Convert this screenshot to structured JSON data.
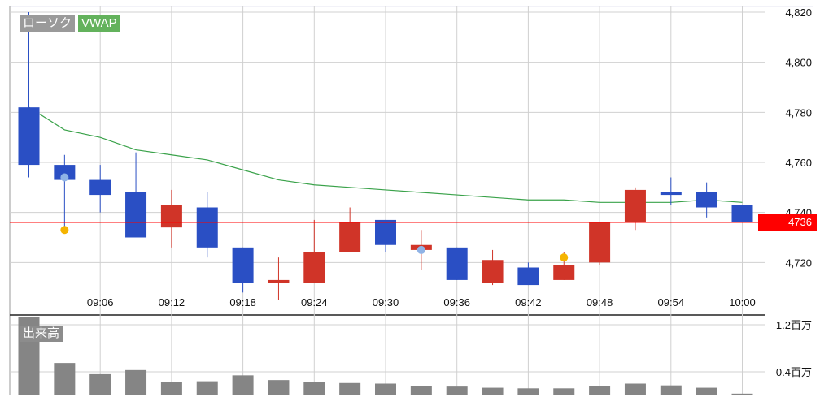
{
  "legend": {
    "candle": "ローソク",
    "vwap": "VWAP",
    "volume": "出来高"
  },
  "current_price_badge": "4736",
  "colors": {
    "up": "#d03428",
    "down": "#2a4fc4",
    "vwap": "#3aa24a",
    "price_line": "#ff0000",
    "volume": "#858585",
    "grid": "#d0d0d0",
    "marker_gold": "#f5b400",
    "marker_blue": "#8fb3e6"
  },
  "chart_data": {
    "type": "candlestick",
    "x_ticks": [
      "09:06",
      "09:12",
      "09:18",
      "09:24",
      "09:30",
      "09:36",
      "09:42",
      "09:48",
      "09:54",
      "10:00"
    ],
    "y_ticks": [
      "4,720",
      "4,740",
      "4,760",
      "4,780",
      "4,800",
      "4,820"
    ],
    "y_tick_values": [
      4720,
      4740,
      4760,
      4780,
      4800,
      4820
    ],
    "ylim": [
      4700,
      4820
    ],
    "current_price": 4736,
    "candles": [
      {
        "o": 4782,
        "h": 4820,
        "l": 4754,
        "c": 4759
      },
      {
        "o": 4759,
        "h": 4763,
        "l": 4733,
        "c": 4753
      },
      {
        "o": 4753,
        "h": 4759,
        "l": 4740,
        "c": 4747
      },
      {
        "o": 4748,
        "h": 4764,
        "l": 4730,
        "c": 4730
      },
      {
        "o": 4734,
        "h": 4749,
        "l": 4726,
        "c": 4743
      },
      {
        "o": 4742,
        "h": 4748,
        "l": 4722,
        "c": 4726
      },
      {
        "o": 4726,
        "h": 4726,
        "l": 4708,
        "c": 4712
      },
      {
        "o": 4712,
        "h": 4722,
        "l": 4705,
        "c": 4713
      },
      {
        "o": 4712,
        "h": 4737,
        "l": 4712,
        "c": 4724
      },
      {
        "o": 4724,
        "h": 4742,
        "l": 4724,
        "c": 4736
      },
      {
        "o": 4737,
        "h": 4737,
        "l": 4724,
        "c": 4727
      },
      {
        "o": 4725,
        "h": 4733,
        "l": 4717,
        "c": 4727
      },
      {
        "o": 4726,
        "h": 4726,
        "l": 4713,
        "c": 4713
      },
      {
        "o": 4712,
        "h": 4725,
        "l": 4711,
        "c": 4721
      },
      {
        "o": 4718,
        "h": 4720,
        "l": 4711,
        "c": 4711
      },
      {
        "o": 4713,
        "h": 4724,
        "l": 4713,
        "c": 4719
      },
      {
        "o": 4720,
        "h": 4736,
        "l": 4719,
        "c": 4736
      },
      {
        "o": 4736,
        "h": 4750,
        "l": 4733,
        "c": 4749
      },
      {
        "o": 4748,
        "h": 4754,
        "l": 4743,
        "c": 4747
      },
      {
        "o": 4748,
        "h": 4752,
        "l": 4738,
        "c": 4742
      },
      {
        "o": 4743,
        "h": 4743,
        "l": 4736,
        "c": 4736
      }
    ],
    "vwap": [
      4782,
      4773,
      4770,
      4765,
      4763,
      4761,
      4757,
      4753,
      4751,
      4750,
      4749,
      4748,
      4747,
      4746,
      4745,
      4745,
      4744,
      4744,
      4744,
      4745,
      4744
    ],
    "markers": [
      {
        "i": 1,
        "price": 4733,
        "color": "gold"
      },
      {
        "i": 1,
        "price": 4754,
        "color": "blue"
      },
      {
        "i": 11,
        "price": 4725,
        "color": "blue"
      },
      {
        "i": 15,
        "price": 4722,
        "color": "gold"
      }
    ],
    "volume": {
      "y_ticks": [
        "0.4百万",
        "1.2百万"
      ],
      "y_tick_values": [
        0.4,
        1.2
      ],
      "values": [
        1.33,
        0.55,
        0.36,
        0.43,
        0.23,
        0.24,
        0.34,
        0.26,
        0.23,
        0.21,
        0.2,
        0.16,
        0.15,
        0.13,
        0.12,
        0.12,
        0.16,
        0.2,
        0.17,
        0.13,
        0.03
      ]
    }
  }
}
